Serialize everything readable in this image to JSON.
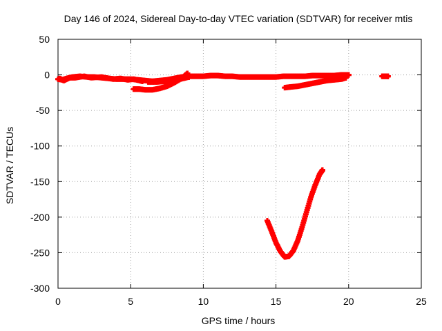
{
  "chart_data": {
    "type": "scatter",
    "title": "Day 146 of 2024, Sidereal Day-to-day VTEC variation (SDTVAR) for receiver mtis",
    "xlabel": "GPS time / hours",
    "ylabel": "SDTVAR / TECUs",
    "xlim": [
      0,
      25
    ],
    "ylim": [
      -300,
      50
    ],
    "xticks": [
      0,
      5,
      10,
      15,
      20,
      25
    ],
    "yticks": [
      50,
      0,
      -50,
      -100,
      -150,
      -200,
      -250,
      -300
    ],
    "grid": true,
    "series_color": "#ff0000",
    "series": [
      {
        "points": [
          [
            0.0,
            -6
          ],
          [
            0.3,
            -7
          ],
          [
            0.6,
            -5
          ],
          [
            1.0,
            -3
          ],
          [
            1.5,
            -2
          ],
          [
            2.0,
            -3
          ],
          [
            2.5,
            -3
          ],
          [
            3.0,
            -4
          ],
          [
            3.5,
            -5
          ],
          [
            4.0,
            -6
          ],
          [
            4.5,
            -6
          ],
          [
            5.0,
            -6
          ],
          [
            5.5,
            -7
          ],
          [
            6.0,
            -8
          ],
          [
            6.5,
            -9
          ],
          [
            7.0,
            -8
          ],
          [
            7.5,
            -7
          ],
          [
            8.0,
            -5
          ],
          [
            8.5,
            -3
          ],
          [
            9.0,
            -2
          ],
          [
            9.5,
            -2
          ],
          [
            10.0,
            -2
          ],
          [
            10.5,
            -1
          ],
          [
            11.0,
            -1
          ],
          [
            11.5,
            -2
          ],
          [
            12.0,
            -2
          ],
          [
            12.5,
            -3
          ],
          [
            13.0,
            -3
          ],
          [
            13.5,
            -3
          ],
          [
            14.0,
            -3
          ],
          [
            14.5,
            -3
          ],
          [
            15.0,
            -3
          ],
          [
            15.5,
            -2
          ],
          [
            16.0,
            -2
          ],
          [
            16.5,
            -2
          ],
          [
            17.0,
            -2
          ],
          [
            17.5,
            -1
          ],
          [
            18.0,
            -1
          ],
          [
            18.5,
            -1
          ],
          [
            19.0,
            -1
          ],
          [
            19.5,
            0
          ],
          [
            20.0,
            0
          ]
        ]
      },
      {
        "points": [
          [
            0.1,
            -5
          ],
          [
            0.4,
            -8
          ],
          [
            0.8,
            -4
          ],
          [
            1.2,
            -4
          ],
          [
            1.8,
            -2
          ],
          [
            2.3,
            -4
          ],
          [
            3.0,
            -3
          ],
          [
            3.8,
            -6
          ],
          [
            4.3,
            -5
          ],
          [
            4.8,
            -7
          ],
          [
            5.2,
            -6
          ],
          [
            5.8,
            -9
          ]
        ]
      },
      {
        "points": [
          [
            5.2,
            -20
          ],
          [
            5.6,
            -20
          ],
          [
            6.0,
            -21
          ],
          [
            6.5,
            -21
          ],
          [
            7.0,
            -19
          ],
          [
            7.5,
            -16
          ],
          [
            8.0,
            -11
          ],
          [
            8.5,
            -5
          ],
          [
            8.9,
            2
          ]
        ]
      },
      {
        "points": [
          [
            6.2,
            -10
          ],
          [
            6.8,
            -10
          ],
          [
            7.4,
            -9
          ],
          [
            8.0,
            -8
          ],
          [
            8.6,
            -5
          ],
          [
            9.0,
            -3
          ]
        ]
      },
      {
        "points": [
          [
            15.6,
            -18
          ],
          [
            16.0,
            -17
          ],
          [
            16.5,
            -16
          ],
          [
            17.0,
            -14
          ],
          [
            17.5,
            -12
          ],
          [
            18.0,
            -10
          ],
          [
            18.5,
            -8
          ],
          [
            19.0,
            -7
          ],
          [
            19.5,
            -6
          ],
          [
            19.8,
            -4
          ]
        ]
      },
      {
        "points": [
          [
            14.4,
            -205
          ],
          [
            14.7,
            -220
          ],
          [
            15.0,
            -236
          ],
          [
            15.3,
            -248
          ],
          [
            15.6,
            -256
          ],
          [
            15.9,
            -255
          ],
          [
            16.2,
            -247
          ],
          [
            16.5,
            -233
          ],
          [
            16.8,
            -214
          ],
          [
            17.1,
            -193
          ],
          [
            17.4,
            -172
          ],
          [
            17.7,
            -155
          ],
          [
            18.0,
            -140
          ],
          [
            18.2,
            -134
          ]
        ]
      },
      {
        "points": [
          [
            22.3,
            -2
          ],
          [
            22.5,
            -2
          ],
          [
            22.7,
            -2
          ]
        ]
      }
    ]
  }
}
